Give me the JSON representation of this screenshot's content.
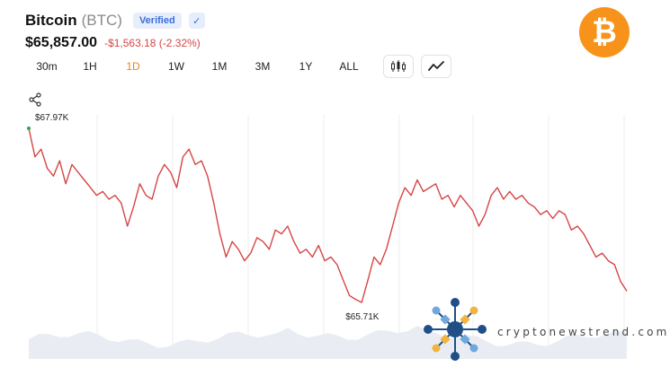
{
  "coin": {
    "name": "Bitcoin",
    "ticker": "(BTC)",
    "verified_label": "Verified",
    "check_glyph": "✓",
    "price": "$65,857.00",
    "change": "-$1,563.18 (-2.32%)",
    "logo_glyph": "₿"
  },
  "timeframes": [
    {
      "label": "30m",
      "active": false
    },
    {
      "label": "1H",
      "active": false
    },
    {
      "label": "1D",
      "active": true
    },
    {
      "label": "1W",
      "active": false
    },
    {
      "label": "1M",
      "active": false
    },
    {
      "label": "3M",
      "active": false
    },
    {
      "label": "1Y",
      "active": false
    },
    {
      "label": "ALL",
      "active": false
    }
  ],
  "toolbar": {
    "candlestick_icon": "candlestick-icon",
    "line_icon": "line-chart-icon",
    "share_icon": "share-icon"
  },
  "chart_data": {
    "type": "line",
    "series": [
      {
        "color": "#d64545",
        "values": [
          67970,
          67600,
          67700,
          67450,
          67350,
          67550,
          67250,
          67500,
          67400,
          67300,
          67200,
          67100,
          67150,
          67050,
          67100,
          67000,
          66700,
          66950,
          67250,
          67100,
          67050,
          67350,
          67500,
          67400,
          67200,
          67600,
          67700,
          67500,
          67550,
          67350,
          67000,
          66600,
          66300,
          66500,
          66400,
          66250,
          66350,
          66550,
          66500,
          66400,
          66650,
          66600,
          66700,
          66500,
          66350,
          66400,
          66300,
          66450,
          66250,
          66300,
          66200,
          66000,
          65800,
          65750,
          65710,
          66000,
          66300,
          66200,
          66400,
          66700,
          67000,
          67200,
          67100,
          67300,
          67150,
          67200,
          67250,
          67050,
          67100,
          66950,
          67100,
          67000,
          66900,
          66700,
          66850,
          67100,
          67200,
          67050,
          67150,
          67050,
          67100,
          67000,
          66950,
          66850,
          66900,
          66800,
          66900,
          66850,
          66650,
          66700,
          66600,
          66450,
          66300,
          66350,
          66250,
          66200,
          65980,
          65857
        ]
      }
    ],
    "annotations": [
      {
        "label": "$67.97K",
        "kind": "high"
      },
      {
        "label": "$65.71K",
        "kind": "low"
      }
    ],
    "grid": "vertical",
    "volume_area": true
  },
  "watermark": {
    "text": "cryptonewstrend.com"
  }
}
